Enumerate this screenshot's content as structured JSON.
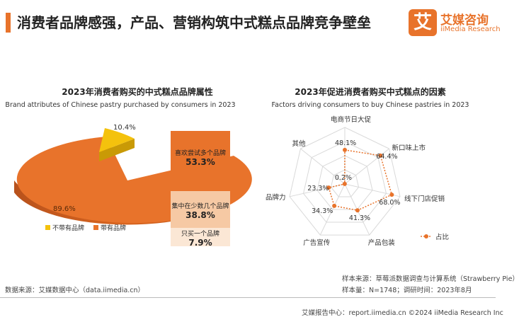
{
  "header": {
    "title": "消费者品牌感强，产品、营销构筑中式糕点品牌竞争壁垒",
    "logo_glyph": "艾",
    "logo_name": "艾媒咨询",
    "logo_sub": "iiMedia Research"
  },
  "colors": {
    "accent": "#e8732b",
    "yellow": "#f4c20d",
    "light": "#f6c9a4",
    "pale": "#fbe7d5"
  },
  "chart_data": [
    {
      "type": "pie",
      "title": "2023年消费者购买的中式糕点品牌属性",
      "subtitle": "Brand attributes of Chinese pastry purchased by consumers in 2023",
      "categories": [
        "不带有品牌",
        "带有品牌"
      ],
      "values": [
        10.4,
        89.6
      ],
      "value_labels": [
        "10.4%",
        "89.6%"
      ],
      "legend": [
        "不带有品牌",
        "带有品牌"
      ],
      "legend_position": "bottom",
      "breakdown": {
        "type": "bar",
        "stacked": true,
        "categories": [
          "喜欢尝试多个品牌",
          "集中在少数几个品牌",
          "只买一个品牌"
        ],
        "values": [
          53.3,
          38.8,
          7.9
        ],
        "value_labels": [
          "53.3%",
          "38.8%",
          "7.9%"
        ]
      }
    },
    {
      "type": "radar",
      "title": "2023年促进消费者购买中式糕点的因素",
      "subtitle": "Factors driving consumers to buy Chinese pastries in 2023",
      "categories": [
        "电商节日大促",
        "新口味上市",
        "线下门店促销",
        "产品包装",
        "广告宣传",
        "品牌力",
        "其他"
      ],
      "values": [
        48.1,
        64.4,
        68.0,
        41.3,
        34.3,
        23.3,
        0.2
      ],
      "value_labels": [
        "48.1%",
        "64.4%",
        "68.0%",
        "41.3%",
        "34.3%",
        "23.3%",
        "0.2%"
      ],
      "series": [
        {
          "name": "占比",
          "values": [
            48.1,
            64.4,
            68.0,
            41.3,
            34.3,
            23.3,
            0.2
          ]
        }
      ],
      "legend_position": "bottom-right",
      "grid": true
    }
  ],
  "footer": {
    "source_left": "数据来源：艾媒数据中心（data.iimedia.cn）",
    "sample_source": "样本来源：草莓派数据调查与计算系统（Strawberry Pie）",
    "sample_size": "样本量：N=1748；调研时间：2023年8月",
    "bottom": "艾媒报告中心：report.iimedia.cn  ©2024  iiMedia Research  Inc"
  }
}
